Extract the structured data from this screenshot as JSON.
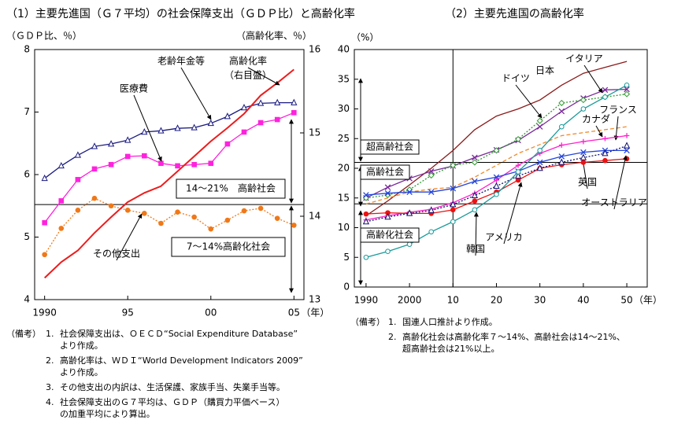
{
  "chart_data": [
    {
      "type": "line",
      "title": "（1）主要先進国（Ｇ７平均）の社会保障支出（ＧＤＰ比）と高齢化率",
      "y_label": "（ＧＤＰ比、％）",
      "y2_label": "（高齢化率、％）",
      "x_unit": "（年）",
      "x": [
        1990,
        1991,
        1992,
        1993,
        1994,
        1995,
        1996,
        1997,
        1998,
        1999,
        2000,
        2001,
        2002,
        2003,
        2004,
        2005
      ],
      "xlim": [
        1989.4,
        2005.6
      ],
      "xticks": [
        1990,
        {
          "value": 1995,
          "label": "95"
        },
        {
          "value": 2000,
          "label": "00"
        },
        {
          "value": 2005,
          "label": "05"
        }
      ],
      "ylim": [
        4,
        8
      ],
      "yticks": [
        4,
        5,
        6,
        7,
        8
      ],
      "y2lim": [
        13,
        16
      ],
      "y2ticks": [
        13,
        14,
        15,
        16
      ],
      "series": [
        {
          "name": "老齢年金等",
          "color": "#1a1a80",
          "marker": "triangle-open",
          "dash": "solid",
          "values": [
            5.94,
            6.14,
            6.31,
            6.45,
            6.49,
            6.55,
            6.68,
            6.7,
            6.74,
            6.75,
            6.82,
            6.93,
            7.07,
            7.14,
            7.15,
            7.15
          ]
        },
        {
          "name": "医療費",
          "color": "#ff22dd",
          "marker": "square-filled",
          "dash": "solid",
          "values": [
            5.23,
            5.58,
            5.92,
            6.09,
            6.16,
            6.29,
            6.3,
            6.18,
            6.14,
            6.16,
            6.18,
            6.49,
            6.68,
            6.83,
            6.88,
            6.99
          ]
        },
        {
          "name": "その他支出",
          "color": "#f07818",
          "marker": "circle-filled",
          "dash": "dotted",
          "values": [
            4.72,
            5.14,
            5.43,
            5.62,
            5.5,
            5.43,
            5.38,
            5.22,
            5.4,
            5.32,
            5.13,
            5.27,
            5.42,
            5.46,
            5.3,
            5.19
          ]
        },
        {
          "name": "高齢化率",
          "note": "（右目盛）",
          "color": "#ee1c1c",
          "marker": "none",
          "dash": "solid",
          "axis": "y2",
          "values": [
            13.26,
            13.45,
            13.59,
            13.8,
            13.99,
            14.17,
            14.28,
            14.36,
            14.54,
            14.72,
            14.9,
            15.06,
            15.23,
            15.45,
            15.6,
            15.76
          ]
        }
      ],
      "reference_lines_y2": [
        14.14
      ],
      "zones": [
        "14～21%　高齢社会",
        "7～14%高齢化社会"
      ],
      "notes_label": "（備考）",
      "notes": [
        {
          "number": "1.",
          "lines": [
            "社会保障支出は、ＯＥＣＤ“Social Expenditure Database”",
            "より作成。"
          ]
        },
        {
          "number": "2.",
          "lines": [
            "高齢化率は、ＷＤＩ“World Development Indicators 2009”",
            "より作成。"
          ]
        },
        {
          "number": "3.",
          "lines": [
            "その他支出の内訳は、生活保護、家族手当、失業手当等。"
          ]
        },
        {
          "number": "4.",
          "lines": [
            "社会保障支出のＧ７平均は、ＧＤＰ（購買力平価ベース）",
            "の加重平均により算出。"
          ]
        }
      ]
    },
    {
      "type": "line",
      "title": "（2）主要先進国の高齢化率",
      "y_label": "（%）",
      "x_unit": "（年）",
      "x": [
        1990,
        1995,
        2000,
        2005,
        2010,
        2015,
        2020,
        2025,
        2030,
        2035,
        2040,
        2045,
        2050
      ],
      "xlim": [
        1987.3,
        2054.7
      ],
      "xticks": [
        1990,
        2000,
        {
          "value": 2010,
          "label": "10"
        },
        {
          "value": 2020,
          "label": "20"
        },
        {
          "value": 2030,
          "label": "30"
        },
        {
          "value": 2040,
          "label": "40"
        },
        {
          "value": 2050,
          "label": "50"
        }
      ],
      "ylim": [
        0,
        40
      ],
      "yticks": [
        0,
        5,
        10,
        15,
        20,
        25,
        30,
        35,
        40
      ],
      "series": [
        {
          "name": "日本",
          "color": "#8b1a1a",
          "marker": "none",
          "dash": "solid",
          "values": [
            12.0,
            14.5,
            17.2,
            20.0,
            23.0,
            26.5,
            28.8,
            30.0,
            31.5,
            34.0,
            36.0,
            37.0,
            38.0
          ]
        },
        {
          "name": "イタリア",
          "color": "#7a2a9a",
          "marker": "x",
          "dash": "solid",
          "values": [
            15.0,
            16.8,
            18.3,
            19.5,
            20.4,
            21.8,
            23.1,
            24.7,
            27.0,
            29.6,
            31.8,
            33.2,
            33.3
          ]
        },
        {
          "name": "ドイツ",
          "color": "#2e9a2e",
          "marker": "diamond-open",
          "dash": "dotted",
          "values": [
            15.0,
            15.5,
            16.4,
            18.8,
            20.5,
            21.0,
            23.0,
            24.9,
            28.0,
            31.0,
            31.5,
            32.0,
            32.5
          ]
        },
        {
          "name": "フランス",
          "color": "#f08a2a",
          "marker": "none",
          "dash": "dashed",
          "values": [
            14.0,
            15.0,
            16.0,
            16.5,
            16.8,
            18.5,
            20.5,
            22.5,
            24.0,
            25.5,
            26.0,
            26.5,
            27.0
          ]
        },
        {
          "name": "カナダ",
          "color": "#ff22cc",
          "marker": "plus",
          "dash": "solid",
          "values": [
            11.3,
            12.0,
            12.6,
            13.1,
            14.2,
            15.8,
            18.0,
            20.5,
            22.5,
            23.9,
            24.5,
            25.0,
            25.5
          ]
        },
        {
          "name": "英国",
          "color": "#2244dd",
          "marker": "x",
          "dash": "solid",
          "values": [
            15.5,
            15.8,
            16.0,
            16.0,
            16.6,
            17.8,
            18.5,
            19.5,
            21.0,
            22.0,
            22.7,
            23.0,
            23.0
          ]
        },
        {
          "name": "アメリカ",
          "color": "#ee1111",
          "marker": "circle-filled",
          "dash": "solid",
          "values": [
            12.3,
            12.5,
            12.4,
            12.4,
            13.0,
            14.5,
            16.0,
            18.0,
            20.0,
            20.6,
            21.0,
            21.3,
            21.6
          ]
        },
        {
          "name": "オーストラリア",
          "color": "#101070",
          "marker": "triangle-open",
          "dash": "dotted",
          "values": [
            11.0,
            11.8,
            12.4,
            12.9,
            13.9,
            15.4,
            17.0,
            18.7,
            20.0,
            21.0,
            21.8,
            22.5,
            23.8
          ]
        },
        {
          "name": "韓国",
          "color": "#1a9a9a",
          "marker": "circle-open",
          "dash": "solid",
          "values": [
            5.0,
            6.0,
            7.2,
            9.3,
            11.0,
            13.0,
            15.6,
            19.4,
            23.0,
            27.0,
            30.0,
            32.0,
            34.0
          ]
        }
      ],
      "reference_lines": [
        21,
        14
      ],
      "reference_x": [
        2010
      ],
      "zones": [
        "超高齢社会",
        "高齢社会",
        "高齢化社会"
      ],
      "notes_label": "（備考）",
      "notes": [
        {
          "number": "1.",
          "lines": [
            "国連人口推計より作成。"
          ]
        },
        {
          "number": "2.",
          "lines": [
            "高齢化社会は高齢化率７～14%、高齢社会は14～21%、",
            "超高齢社会は21%以上。"
          ]
        }
      ]
    }
  ]
}
